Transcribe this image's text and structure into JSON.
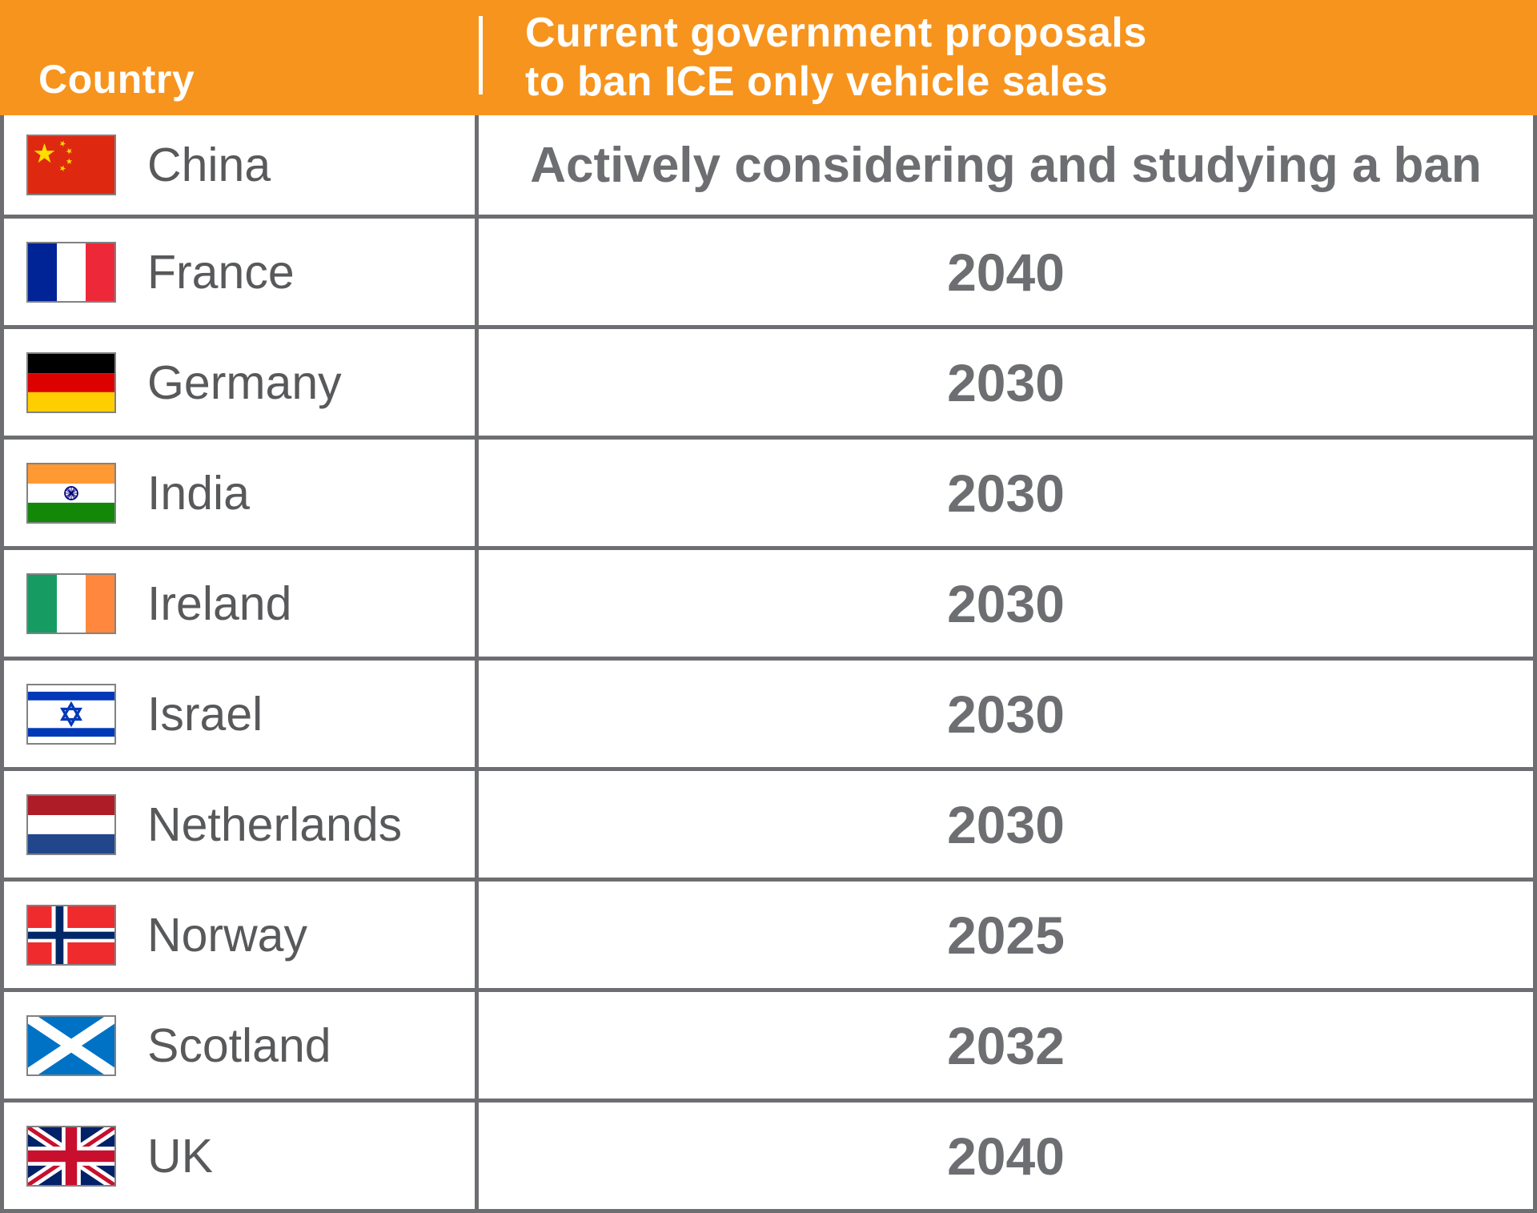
{
  "header": {
    "col1": "Country",
    "line1": "Current government proposals",
    "line2": "to ban ICE only vehicle sales"
  },
  "chart_data": {
    "type": "table",
    "title": "Current government proposals to ban ICE only vehicle sales",
    "columns": [
      "Country",
      "Current government proposals to ban ICE only vehicle sales"
    ],
    "rows": [
      {
        "country": "China",
        "flag_icon": "china-flag-icon",
        "proposal": "Actively considering and studying a ban"
      },
      {
        "country": "France",
        "flag_icon": "france-flag-icon",
        "proposal": "2040"
      },
      {
        "country": "Germany",
        "flag_icon": "germany-flag-icon",
        "proposal": "2030"
      },
      {
        "country": "India",
        "flag_icon": "india-flag-icon",
        "proposal": "2030"
      },
      {
        "country": "Ireland",
        "flag_icon": "ireland-flag-icon",
        "proposal": "2030"
      },
      {
        "country": "Israel",
        "flag_icon": "israel-flag-icon",
        "proposal": "2030"
      },
      {
        "country": "Netherlands",
        "flag_icon": "netherlands-flag-icon",
        "proposal": "2030"
      },
      {
        "country": "Norway",
        "flag_icon": "norway-flag-icon",
        "proposal": "2025"
      },
      {
        "country": "Scotland",
        "flag_icon": "scotland-flag-icon",
        "proposal": "2032"
      },
      {
        "country": "UK",
        "flag_icon": "uk-flag-icon",
        "proposal": "2040"
      }
    ]
  },
  "colors": {
    "header_bg": "#F7941D",
    "header_text": "#FFFFFF",
    "label_text": "#58595B",
    "value_text": "#6D6E71",
    "grid": "#6D6E71",
    "flag_border": "#808285",
    "background": "#FFFFFF"
  }
}
